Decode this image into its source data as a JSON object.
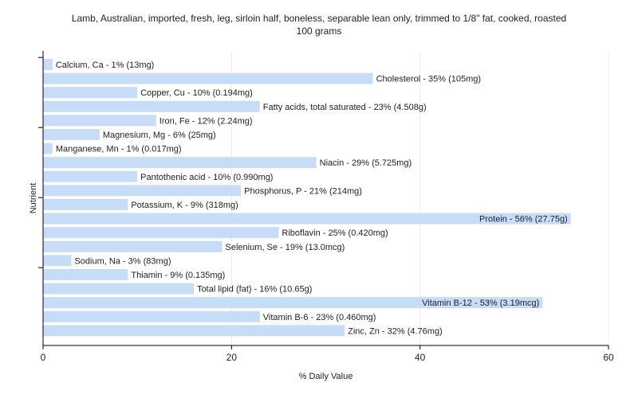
{
  "chart_data": {
    "type": "bar",
    "orientation": "horizontal",
    "title_lines": [
      "Lamb, Australian, imported, fresh, leg, sirloin half, boneless, separable lean only, trimmed to 1/8\" fat, cooked, roasted",
      "100 grams"
    ],
    "xlabel": "% Daily Value",
    "ylabel": "Nutrient",
    "xlim": [
      0,
      60
    ],
    "xticks": [
      0,
      20,
      40,
      60
    ],
    "grid": true,
    "bar_color": "#c6dcf7",
    "categories": [
      "Calcium, Ca",
      "Cholesterol",
      "Copper, Cu",
      "Fatty acids, total saturated",
      "Iron, Fe",
      "Magnesium, Mg",
      "Manganese, Mn",
      "Niacin",
      "Pantothenic acid",
      "Phosphorus, P",
      "Potassium, K",
      "Protein",
      "Riboflavin",
      "Selenium, Se",
      "Sodium, Na",
      "Thiamin",
      "Total lipid (fat)",
      "Vitamin B-12",
      "Vitamin B-6",
      "Zinc, Zn"
    ],
    "values": [
      1,
      35,
      10,
      23,
      12,
      6,
      1,
      29,
      10,
      21,
      9,
      56,
      25,
      19,
      3,
      9,
      16,
      53,
      23,
      32
    ],
    "labels": [
      "Calcium, Ca - 1% (13mg)",
      "Cholesterol - 35% (105mg)",
      "Copper, Cu - 10% (0.194mg)",
      "Fatty acids, total saturated - 23% (4.508g)",
      "Iron, Fe - 12% (2.24mg)",
      "Magnesium, Mg - 6% (25mg)",
      "Manganese, Mn - 1% (0.017mg)",
      "Niacin - 29% (5.725mg)",
      "Pantothenic acid - 10% (0.990mg)",
      "Phosphorus, P - 21% (214mg)",
      "Potassium, K - 9% (318mg)",
      "Protein - 56% (27.75g)",
      "Riboflavin - 25% (0.420mg)",
      "Selenium, Se - 19% (13.0mcg)",
      "Sodium, Na - 3% (83mg)",
      "Thiamin - 9% (0.135mg)",
      "Total lipid (fat) - 16% (10.65g)",
      "Vitamin B-12 - 53% (3.19mcg)",
      "Vitamin B-6 - 23% (0.460mg)",
      "Zinc, Zn - 32% (4.76mg)"
    ]
  }
}
